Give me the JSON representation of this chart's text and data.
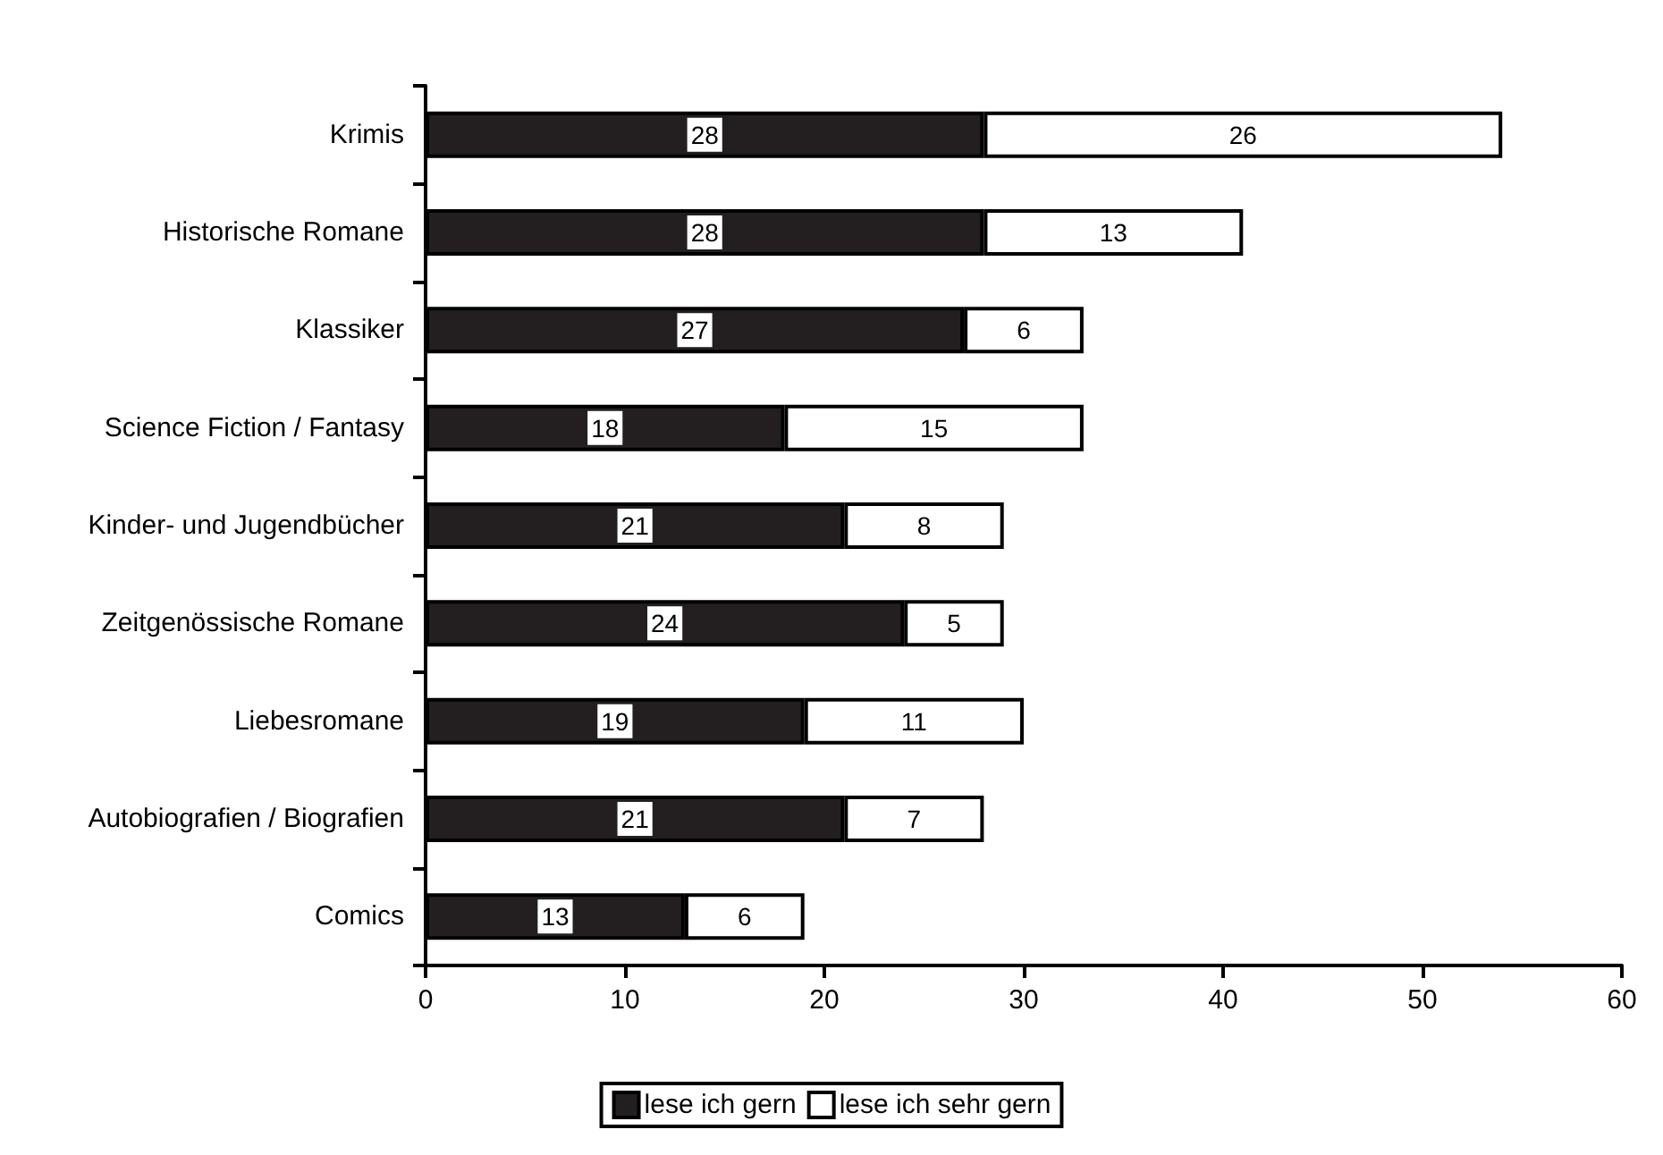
{
  "chart_data": {
    "type": "bar",
    "orientation": "horizontal",
    "stacked": true,
    "data_labels": true,
    "legend": "bottom",
    "grid": false,
    "categories": [
      "Krimis",
      "Historische Romane",
      "Klassiker",
      "Science Fiction / Fantasy",
      "Kinder- und Jugendbücher",
      "Zeitgenössische Romane",
      "Liebesromane",
      "Autobiografien / Biografien",
      "Comics"
    ],
    "series": [
      {
        "name": "lese ich gern",
        "color": "#231f20",
        "values": [
          28,
          28,
          27,
          18,
          21,
          24,
          19,
          21,
          13
        ]
      },
      {
        "name": "lese ich sehr gern",
        "color": "#ffffff",
        "values": [
          26,
          13,
          6,
          15,
          8,
          5,
          11,
          7,
          6
        ]
      }
    ],
    "xlim": [
      0,
      60
    ],
    "xticks": [
      0,
      10,
      20,
      30,
      40,
      50,
      60
    ]
  }
}
